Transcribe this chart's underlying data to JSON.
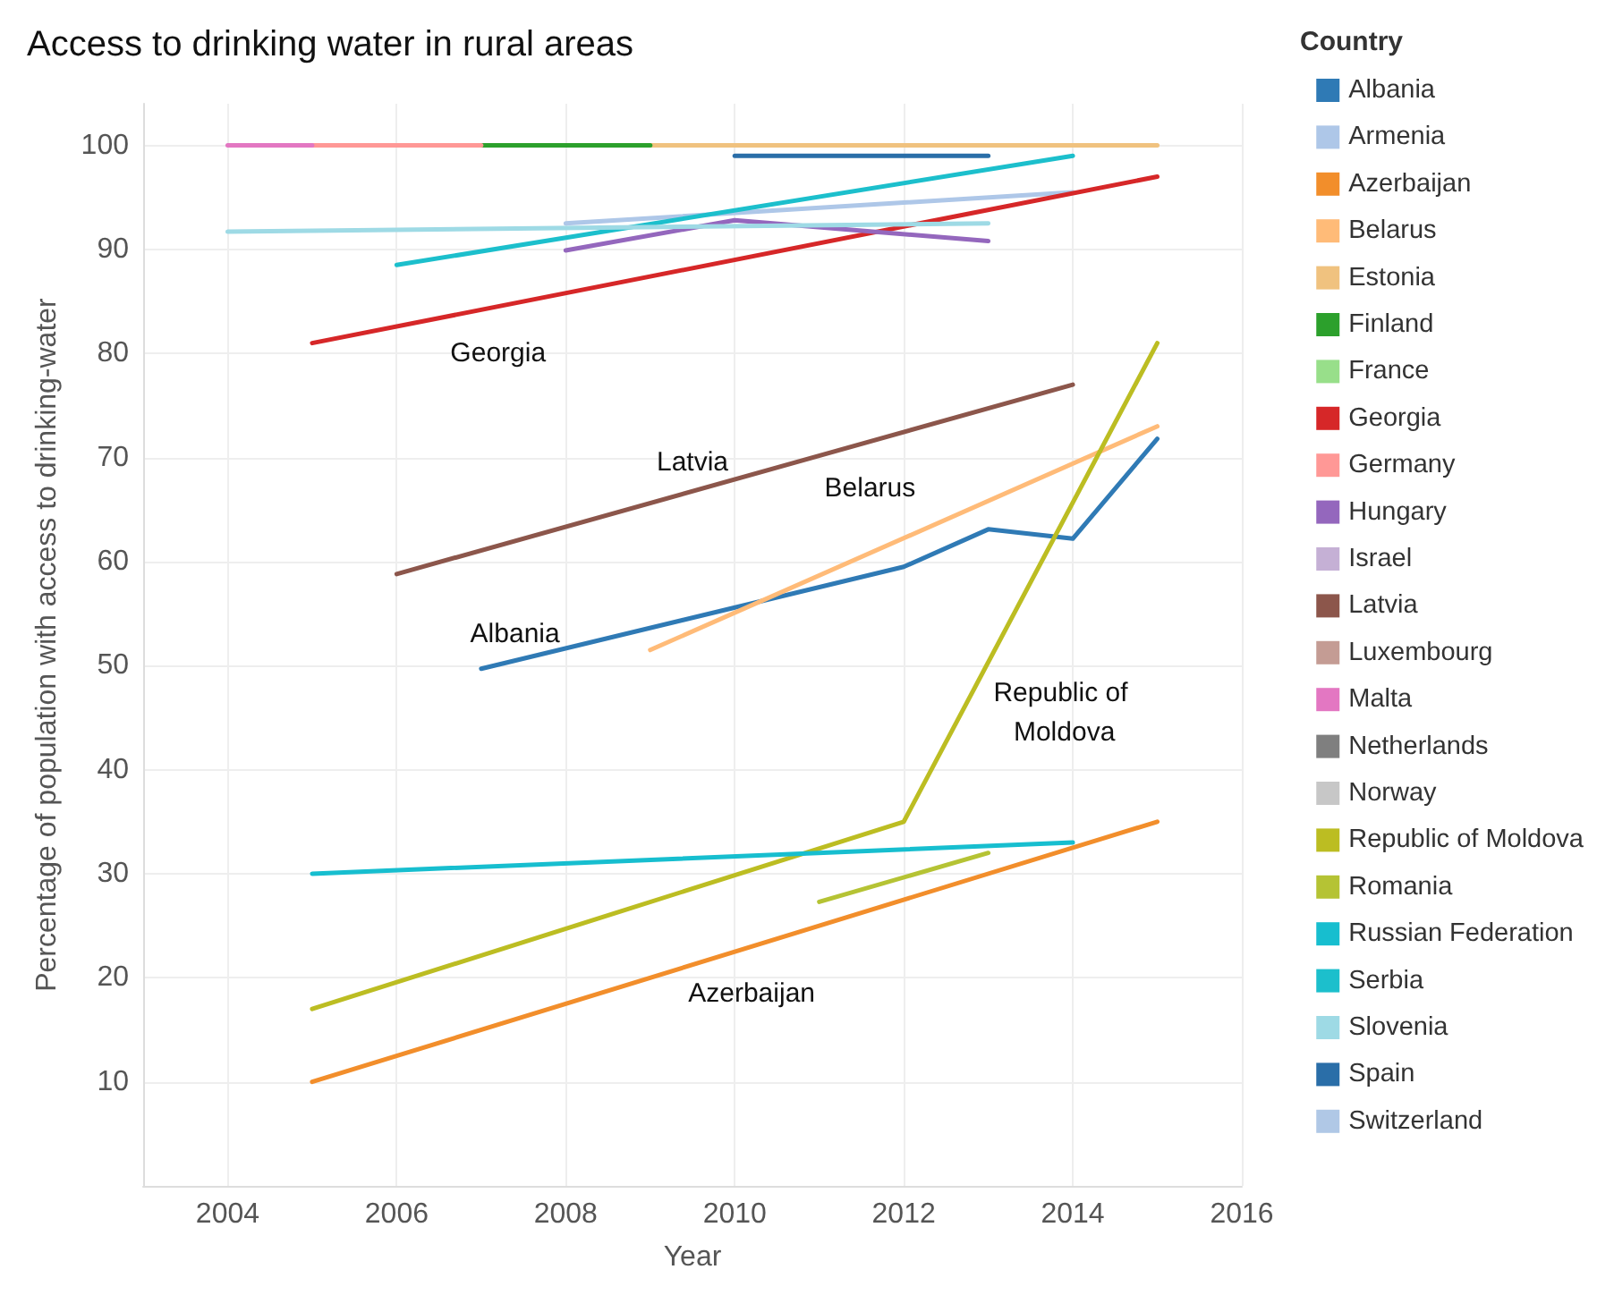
{
  "chart_data": {
    "type": "line",
    "title": "Access to drinking water in rural areas",
    "xlabel": "Year",
    "ylabel": "Percentage of population with access to drinking-water",
    "legend_title": "Country",
    "xlim": [
      2003,
      2016
    ],
    "xticks": [
      2004,
      2006,
      2008,
      2010,
      2012,
      2014,
      2016
    ],
    "ylim": [
      0,
      104
    ],
    "yticks": [
      10,
      20,
      30,
      40,
      50,
      60,
      70,
      80,
      90,
      100
    ],
    "grid": true,
    "legend": "right",
    "marker": "none",
    "line_style": "solid",
    "series": [
      {
        "name": "Albania",
        "color": "#2f7ab5",
        "x": [
          2007,
          2012,
          2013,
          2014,
          2015
        ],
        "values": [
          49.7,
          59.5,
          63.1,
          62.2,
          71.8
        ]
      },
      {
        "name": "Armenia",
        "color": "#aec7e8",
        "x": [
          2008,
          2014
        ],
        "values": [
          92.5,
          95.5
        ]
      },
      {
        "name": "Azerbaijan",
        "color": "#f28e2b",
        "x": [
          2005,
          2015
        ],
        "values": [
          10,
          35
        ]
      },
      {
        "name": "Belarus",
        "color": "#ffbb78",
        "x": [
          2009,
          2015
        ],
        "values": [
          51.5,
          73
        ]
      },
      {
        "name": "Estonia",
        "color": "#f0c27f",
        "x": [
          2009,
          2015
        ],
        "values": [
          100,
          100
        ]
      },
      {
        "name": "Finland",
        "color": "#2ca02c",
        "x": [
          2007,
          2009
        ],
        "values": [
          100,
          100
        ]
      },
      {
        "name": "France",
        "color": "#98df8a"
      },
      {
        "name": "Georgia",
        "color": "#d62728",
        "x": [
          2005,
          2015
        ],
        "values": [
          81,
          97
        ]
      },
      {
        "name": "Germany",
        "color": "#ff9896",
        "x": [
          2005,
          2007
        ],
        "values": [
          100,
          100
        ]
      },
      {
        "name": "Hungary",
        "color": "#9467bd",
        "x": [
          2008,
          2010,
          2013
        ],
        "values": [
          89.9,
          92.8,
          90.8
        ]
      },
      {
        "name": "Israel",
        "color": "#c5b0d5"
      },
      {
        "name": "Latvia",
        "color": "#8c564b",
        "x": [
          2006,
          2014
        ],
        "values": [
          58.8,
          77
        ]
      },
      {
        "name": "Luxembourg",
        "color": "#c49c94"
      },
      {
        "name": "Malta",
        "color": "#e377c2",
        "x": [
          2004,
          2005
        ],
        "values": [
          100,
          100
        ]
      },
      {
        "name": "Netherlands",
        "color": "#7f7f7f"
      },
      {
        "name": "Norway",
        "color": "#c7c7c7"
      },
      {
        "name": "Republic of Moldova",
        "color": "#bcbd22",
        "x": [
          2005,
          2012,
          2015
        ],
        "values": [
          17,
          35,
          81
        ]
      },
      {
        "name": "Romania",
        "color": "#b5c334",
        "x": [
          2011,
          2013
        ],
        "values": [
          27.3,
          32
        ]
      },
      {
        "name": "Russian Federation",
        "color": "#17becf",
        "x": [
          2005,
          2014
        ],
        "values": [
          30,
          33
        ]
      },
      {
        "name": "Serbia",
        "color": "#1cbfcc",
        "x": [
          2006,
          2014
        ],
        "values": [
          88.5,
          99
        ]
      },
      {
        "name": "Slovenia",
        "color": "#9edae5",
        "x": [
          2004,
          2013
        ],
        "values": [
          91.7,
          92.5
        ]
      },
      {
        "name": "Spain",
        "color": "#2a6ea8",
        "x": [
          2010,
          2013
        ],
        "values": [
          99,
          99
        ]
      },
      {
        "name": "Switzerland",
        "color": "#b0c8e6"
      }
    ],
    "annotations": [
      "Georgia",
      "Latvia",
      "Belarus",
      "Albania",
      "Republic of Moldova",
      "Azerbaijan"
    ]
  }
}
